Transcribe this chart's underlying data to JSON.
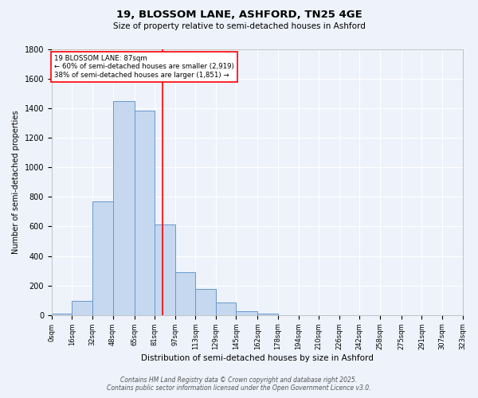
{
  "title": "19, BLOSSOM LANE, ASHFORD, TN25 4GE",
  "subtitle": "Size of property relative to semi-detached houses in Ashford",
  "xlabel": "Distribution of semi-detached houses by size in Ashford",
  "ylabel": "Number of semi-detached properties",
  "bin_labels": [
    "0sqm",
    "16sqm",
    "32sqm",
    "48sqm",
    "65sqm",
    "81sqm",
    "97sqm",
    "113sqm",
    "129sqm",
    "145sqm",
    "162sqm",
    "178sqm",
    "194sqm",
    "210sqm",
    "226sqm",
    "242sqm",
    "258sqm",
    "275sqm",
    "291sqm",
    "307sqm",
    "323sqm"
  ],
  "bar_heights": [
    10,
    95,
    770,
    1450,
    1385,
    615,
    290,
    175,
    85,
    28,
    12,
    0,
    0,
    0,
    0,
    0,
    0,
    0,
    0,
    0
  ],
  "bar_color": "#c5d8f0",
  "bar_edge_color": "#6699cc",
  "vline_x": 87,
  "vline_color": "red",
  "annotation_text": "19 BLOSSOM LANE: 87sqm\n← 60% of semi-detached houses are smaller (2,919)\n38% of semi-detached houses are larger (1,851) →",
  "footer_line1": "Contains HM Land Registry data © Crown copyright and database right 2025.",
  "footer_line2": "Contains public sector information licensed under the Open Government Licence v3.0.",
  "background_color": "#eef2fb",
  "plot_bg_color": "#eef2fb",
  "ylim": [
    0,
    1800
  ],
  "bin_edges": [
    0,
    16,
    32,
    48,
    65,
    81,
    97,
    113,
    129,
    145,
    162,
    178,
    194,
    210,
    226,
    242,
    258,
    275,
    291,
    307,
    323
  ]
}
